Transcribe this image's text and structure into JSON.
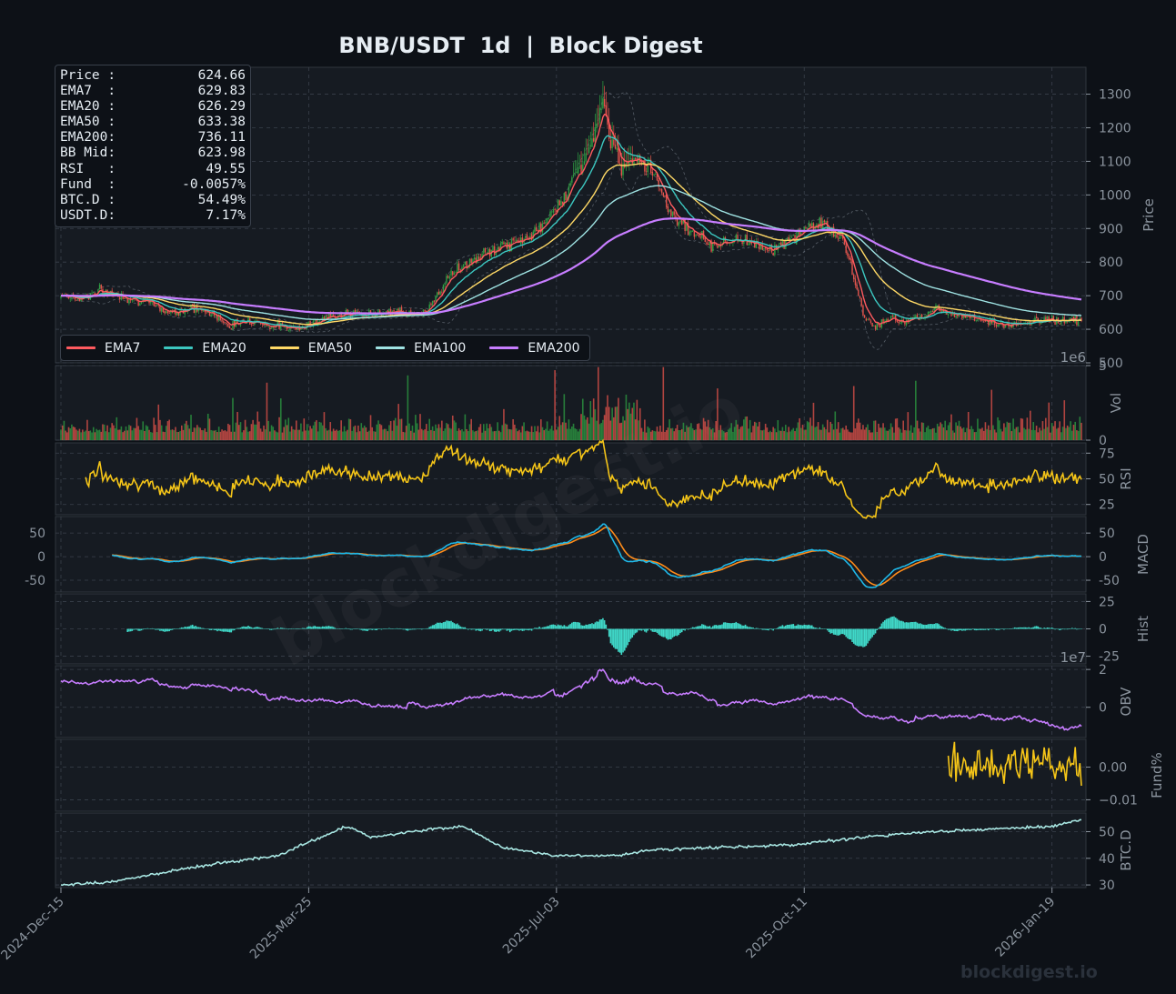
{
  "title": "BNB/USDT  1d  |  Block Digest",
  "footer": "blockdigest.io",
  "watermark": "blockdigest.io",
  "info_box": [
    {
      "label": "Price :",
      "value": "624.66"
    },
    {
      "label": "EMA7  :",
      "value": "629.83"
    },
    {
      "label": "EMA20 :",
      "value": "626.29"
    },
    {
      "label": "EMA50 :",
      "value": "633.38"
    },
    {
      "label": "EMA200:",
      "value": "736.11"
    },
    {
      "label": "BB Mid:",
      "value": "623.98"
    },
    {
      "label": "RSI   :",
      "value": "49.55"
    },
    {
      "label": "Fund  :",
      "value": "-0.0057%"
    },
    {
      "label": "BTC.D :",
      "value": "54.49%"
    },
    {
      "label": "USDT.D:",
      "value": "7.17%"
    }
  ],
  "legend": [
    {
      "name": "EMA7",
      "color": "#ff5a5f"
    },
    {
      "name": "EMA20",
      "color": "#3cc7c0"
    },
    {
      "name": "EMA50",
      "color": "#ffd966"
    },
    {
      "name": "EMA100",
      "color": "#9fe3e3"
    },
    {
      "name": "EMA200",
      "color": "#c77dff"
    }
  ],
  "colors": {
    "background": "#0d1117",
    "panel": "#161b22",
    "up": "#2ea043",
    "down": "#e5534b",
    "rsi": "#f5c518",
    "macd": "#1fb8e8",
    "signal": "#ff8c1a",
    "hist": "#40d9c9",
    "obv": "#c77dff",
    "funding": "#f5c518",
    "btcd": "#a8e6e2"
  },
  "chart_data": {
    "type": "line",
    "subtype": "financial multi-panel (candlestick + indicators)",
    "x_range": [
      "2024-12-15",
      "2026-04-12"
    ],
    "x_ticks": [
      "2024-Dec-15",
      "2025-Mar-25",
      "2025-Jul-03",
      "2025-Oct-11",
      "2026-Jan-19"
    ],
    "panels": [
      {
        "name": "price",
        "ylabel": "Price",
        "ylim": [
          500,
          1380
        ],
        "y_ticks": [
          "500",
          "600",
          "700",
          "800",
          "900",
          "1000",
          "1100",
          "1200",
          "1300"
        ],
        "close_keypoints": [
          [
            0,
            705
          ],
          [
            12,
            690
          ],
          [
            25,
            715
          ],
          [
            40,
            700
          ],
          [
            55,
            680
          ],
          [
            70,
            650
          ],
          [
            85,
            665
          ],
          [
            100,
            640
          ],
          [
            110,
            610
          ],
          [
            120,
            630
          ],
          [
            135,
            610
          ],
          [
            150,
            605
          ],
          [
            165,
            620
          ],
          [
            180,
            650
          ],
          [
            195,
            640
          ],
          [
            210,
            655
          ],
          [
            225,
            645
          ],
          [
            235,
            650
          ],
          [
            245,
            720
          ],
          [
            255,
            780
          ],
          [
            265,
            800
          ],
          [
            280,
            840
          ],
          [
            295,
            860
          ],
          [
            310,
            900
          ],
          [
            325,
            1000
          ],
          [
            335,
            1080
          ],
          [
            345,
            1180
          ],
          [
            350,
            1280
          ],
          [
            355,
            1160
          ],
          [
            362,
            1080
          ],
          [
            370,
            1120
          ],
          [
            378,
            1090
          ],
          [
            385,
            1050
          ],
          [
            393,
            950
          ],
          [
            402,
            910
          ],
          [
            412,
            880
          ],
          [
            420,
            850
          ],
          [
            430,
            860
          ],
          [
            440,
            870
          ],
          [
            450,
            850
          ],
          [
            460,
            840
          ],
          [
            470,
            860
          ],
          [
            480,
            900
          ],
          [
            492,
            920
          ],
          [
            500,
            880
          ],
          [
            505,
            860
          ],
          [
            512,
            760
          ],
          [
            518,
            640
          ],
          [
            525,
            610
          ],
          [
            535,
            630
          ],
          [
            545,
            625
          ],
          [
            555,
            640
          ],
          [
            565,
            660
          ],
          [
            575,
            650
          ],
          [
            585,
            640
          ],
          [
            595,
            630
          ],
          [
            605,
            615
          ],
          [
            615,
            610
          ],
          [
            625,
            620
          ],
          [
            635,
            630
          ],
          [
            645,
            625
          ],
          [
            655,
            630
          ]
        ],
        "lines": [
          {
            "name": "EMA7",
            "last": 629.83
          },
          {
            "name": "EMA20",
            "last": 626.29
          },
          {
            "name": "EMA50",
            "last": 633.38
          },
          {
            "name": "EMA100"
          },
          {
            "name": "EMA200",
            "last": 736.11
          }
        ]
      },
      {
        "name": "volume",
        "ylabel": "Vol",
        "ylim": [
          0,
          5
        ],
        "y_ticks": [
          "0",
          "5"
        ],
        "scale_label": "1e6"
      },
      {
        "name": "rsi",
        "ylabel": "RSI",
        "ylim": [
          15,
          85
        ],
        "y_ticks": [
          "25",
          "50",
          "75"
        ],
        "last": 49.55
      },
      {
        "name": "macd",
        "ylabel": "MACD",
        "ylim": [
          -75,
          85
        ],
        "y_ticks": [
          "-50",
          "0",
          "50"
        ],
        "series": [
          "MACD",
          "Signal"
        ]
      },
      {
        "name": "hist",
        "ylabel": "Hist",
        "ylim": [
          -32,
          32
        ],
        "y_ticks": [
          "-25",
          "0",
          "25"
        ]
      },
      {
        "name": "obv",
        "ylabel": "OBV",
        "ylim": [
          -1.6,
          2.2
        ],
        "y_ticks": [
          "0",
          "2"
        ],
        "scale_label": "1e7"
      },
      {
        "name": "funding",
        "ylabel": "Fund%",
        "ylim": [
          -0.0135,
          0.0085
        ],
        "y_ticks": [
          "0.00",
          "−0.01"
        ],
        "last": -0.0057
      },
      {
        "name": "btcd",
        "ylabel": "BTC.D",
        "ylim": [
          29,
          57
        ],
        "y_ticks": [
          "30",
          "40",
          "50"
        ],
        "last": 54.49
      }
    ]
  }
}
